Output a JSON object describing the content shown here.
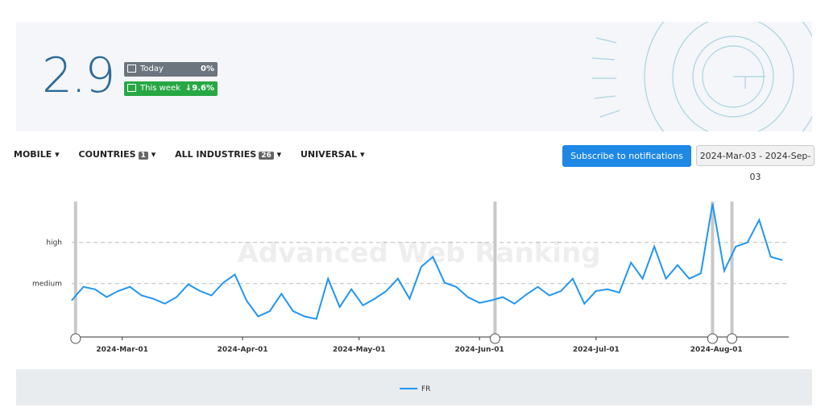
{
  "header": {
    "score": "2.9",
    "today_label": "Today",
    "today_change": "0%",
    "week_label": "This week",
    "week_change": "↓9.6%"
  },
  "filters": [
    {
      "label": "MOBILE"
    },
    {
      "label": "COUNTRIES",
      "badge": "1"
    },
    {
      "label": "ALL INDUSTRIES",
      "badge": "26"
    },
    {
      "label": "UNIVERSAL"
    }
  ],
  "subscribe_button": "Subscribe to notifications",
  "date_range": "2024-Mar-03 - 2024-Sep-03",
  "watermark": "Advanced Web Ranking",
  "chart_data": {
    "type": "line",
    "x": [
      "2024-02-17",
      "2024-02-20",
      "2024-02-23",
      "2024-02-26",
      "2024-02-29",
      "2024-03-03",
      "2024-03-06",
      "2024-03-09",
      "2024-03-12",
      "2024-03-15",
      "2024-03-18",
      "2024-03-21",
      "2024-03-24",
      "2024-03-27",
      "2024-03-30",
      "2024-04-02",
      "2024-04-05",
      "2024-04-08",
      "2024-04-11",
      "2024-04-14",
      "2024-04-17",
      "2024-04-20",
      "2024-04-23",
      "2024-04-26",
      "2024-04-29",
      "2024-05-02",
      "2024-05-05",
      "2024-05-08",
      "2024-05-11",
      "2024-05-14",
      "2024-05-17",
      "2024-05-20",
      "2024-05-23",
      "2024-05-26",
      "2024-05-29",
      "2024-06-01",
      "2024-06-04",
      "2024-06-07",
      "2024-06-10",
      "2024-06-13",
      "2024-06-16",
      "2024-06-19",
      "2024-06-22",
      "2024-06-25",
      "2024-06-28",
      "2024-07-01",
      "2024-07-04",
      "2024-07-07",
      "2024-07-10",
      "2024-07-13",
      "2024-07-16",
      "2024-07-19",
      "2024-07-22",
      "2024-07-25",
      "2024-07-28",
      "2024-07-31",
      "2024-08-03",
      "2024-08-06",
      "2024-08-09",
      "2024-08-12",
      "2024-08-15",
      "2024-08-18"
    ],
    "series": [
      {
        "name": "FR",
        "color": "#2196f3",
        "values": [
          1.59,
          1.92,
          1.86,
          1.67,
          1.82,
          1.92,
          1.71,
          1.63,
          1.51,
          1.67,
          1.98,
          1.82,
          1.71,
          2.02,
          2.22,
          1.59,
          1.2,
          1.33,
          1.75,
          1.33,
          1.2,
          1.14,
          2.12,
          1.43,
          1.86,
          1.47,
          1.63,
          1.82,
          2.12,
          1.63,
          2.41,
          2.65,
          2.02,
          1.92,
          1.67,
          1.53,
          1.59,
          1.67,
          1.51,
          1.73,
          1.92,
          1.71,
          1.82,
          2.12,
          1.51,
          1.82,
          1.86,
          1.78,
          2.51,
          2.12,
          2.9,
          2.12,
          2.45,
          2.12,
          2.25,
          3.94,
          2.31,
          2.9,
          3.0,
          3.55,
          2.65,
          2.57
        ]
      }
    ],
    "xlim": [
      "2024-02-17",
      "2024-08-19"
    ],
    "xticks": [
      {
        "value": "2024-03-01",
        "label": "2024-Mar-01"
      },
      {
        "value": "2024-04-01",
        "label": "2024-Apr-01"
      },
      {
        "value": "2024-05-01",
        "label": "2024-May-01"
      },
      {
        "value": "2024-06-01",
        "label": "2024-Jun-01"
      },
      {
        "value": "2024-07-01",
        "label": "2024-Jul-01"
      },
      {
        "value": "2024-08-01",
        "label": "2024-Aug-01"
      }
    ],
    "ylim": [
      0.7,
      4.0
    ],
    "yticks": [
      {
        "value": 2,
        "label": "medium"
      },
      {
        "value": 3,
        "label": "high"
      }
    ],
    "grid": true,
    "events": [
      "2024-02-18",
      "2024-06-05",
      "2024-07-31",
      "2024-08-05"
    ]
  }
}
